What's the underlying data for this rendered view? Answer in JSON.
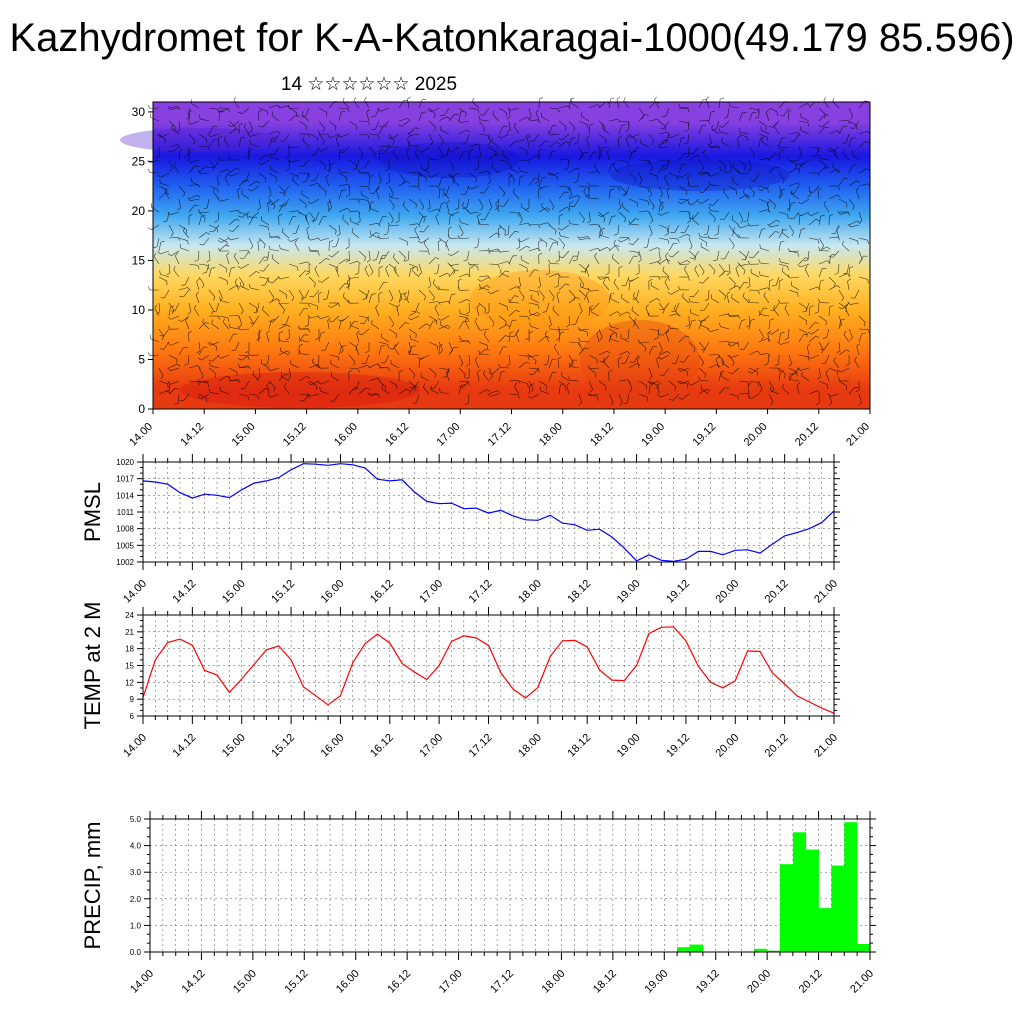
{
  "header": {
    "title": "Kazhydromet for K-A-Katonkaragai-1000(49.179 85.596)",
    "subtitle": "14 ☆☆☆☆☆☆ 2025"
  },
  "colors": {
    "pmsl_line": "#0000ff",
    "temp_line": "#ff0000",
    "precip_bar": "#00ff00",
    "axis": "#000000",
    "grid": "#000000",
    "wind_barb": "#000000"
  },
  "chart_data": [
    {
      "id": "vertical-section",
      "type": "heatmap",
      "title": "",
      "ylabel": "",
      "ylim": [
        0,
        31
      ],
      "y_ticks": [
        "0",
        "5",
        "10",
        "15",
        "20",
        "25",
        "30"
      ],
      "x_ticks": [
        "14.00",
        "14.12",
        "15.00",
        "15.12",
        "16.00",
        "16.12",
        "17.00",
        "17.12",
        "18.00",
        "18.12",
        "19.00",
        "19.12",
        "20.00",
        "20.12",
        "21.00"
      ],
      "color_bands": [
        {
          "from": 0,
          "to": 4,
          "color": "#e83a10"
        },
        {
          "from": 4,
          "to": 8,
          "color": "#ff7a10"
        },
        {
          "from": 8,
          "to": 12,
          "color": "#ffb020"
        },
        {
          "from": 12,
          "to": 15,
          "color": "#ffd860"
        },
        {
          "from": 15,
          "to": 18,
          "color": "#c8e8f0"
        },
        {
          "from": 18,
          "to": 21,
          "color": "#40a8f0"
        },
        {
          "from": 21,
          "to": 24,
          "color": "#2060f0"
        },
        {
          "from": 24,
          "to": 27,
          "color": "#1818e0"
        },
        {
          "from": 27,
          "to": 31,
          "color": "#8840e0"
        }
      ],
      "overlay": "wind barbs"
    },
    {
      "id": "pmsl",
      "type": "line",
      "ylabel": "PMSL",
      "ylim": [
        1002,
        1020
      ],
      "y_ticks": [
        "1002",
        "1005",
        "1008",
        "1011",
        "1014",
        "1017",
        "1020"
      ],
      "x_ticks": [
        "14.00",
        "14.12",
        "15.00",
        "15.12",
        "16.00",
        "16.12",
        "17.00",
        "17.12",
        "18.00",
        "18.12",
        "19.00",
        "19.12",
        "20.00",
        "20.12",
        "21.00"
      ],
      "series": [
        {
          "values": [
            1016.6,
            1016.4,
            1016.0,
            1014.5,
            1013.5,
            1014.2,
            1014.0,
            1013.6,
            1015.0,
            1016.2,
            1016.6,
            1017.2,
            1018.6,
            1019.7,
            1019.6,
            1019.4,
            1019.7,
            1019.5,
            1018.9,
            1016.9,
            1016.6,
            1016.8,
            1014.6,
            1012.9,
            1012.5,
            1012.6,
            1011.6,
            1011.7,
            1010.8,
            1011.3,
            1010.3,
            1009.6,
            1009.5,
            1010.4,
            1009.0,
            1008.7,
            1007.7,
            1007.9,
            1006.5,
            1004.5,
            1002.2,
            1003.3,
            1002.3,
            1002.1,
            1002.5,
            1003.9,
            1003.9,
            1003.3,
            1004.1,
            1004.2,
            1003.6,
            1005.2,
            1006.7,
            1007.3,
            1008.0,
            1009.1,
            1011.2
          ]
        }
      ]
    },
    {
      "id": "temp2m",
      "type": "line",
      "ylabel": "TEMP at 2 M",
      "ylim": [
        6,
        24
      ],
      "y_ticks": [
        "6",
        "9",
        "12",
        "15",
        "18",
        "21",
        "24"
      ],
      "x_ticks": [
        "14.00",
        "14.12",
        "15.00",
        "15.12",
        "16.00",
        "16.12",
        "17.00",
        "17.12",
        "18.00",
        "18.12",
        "19.00",
        "19.12",
        "20.00",
        "20.12",
        "21.00"
      ],
      "series": [
        {
          "values": [
            9.3,
            16.0,
            19.1,
            19.7,
            18.6,
            14.1,
            13.3,
            10.2,
            12.6,
            15.2,
            17.8,
            18.5,
            16.0,
            11.2,
            9.6,
            8.0,
            9.6,
            15.5,
            18.9,
            20.6,
            19.0,
            15.4,
            13.8,
            12.5,
            15.0,
            19.3,
            20.3,
            19.9,
            18.6,
            13.7,
            10.8,
            9.2,
            11.1,
            16.6,
            19.4,
            19.5,
            18.3,
            14.2,
            12.4,
            12.3,
            15.0,
            20.7,
            21.8,
            21.9,
            19.4,
            14.9,
            12.0,
            11.0,
            12.3,
            17.6,
            17.5,
            13.7,
            11.7,
            9.6,
            8.5,
            7.4,
            6.5
          ]
        }
      ]
    },
    {
      "id": "precip",
      "type": "bar",
      "ylabel": "PRECIP, mm",
      "ylim": [
        0,
        5
      ],
      "y_ticks": [
        "0.0",
        "1.0",
        "2.0",
        "3.0",
        "4.0",
        "5.0"
      ],
      "x_ticks": [
        "14.00",
        "14.12",
        "15.00",
        "15.12",
        "16.00",
        "16.12",
        "17.00",
        "17.12",
        "18.00",
        "18.12",
        "19.00",
        "19.12",
        "20.00",
        "20.12",
        "21.00"
      ],
      "values": [
        0,
        0,
        0,
        0,
        0,
        0,
        0,
        0,
        0,
        0,
        0,
        0,
        0,
        0,
        0,
        0,
        0,
        0,
        0,
        0,
        0,
        0,
        0,
        0,
        0,
        0.02,
        0,
        0,
        0,
        0,
        0,
        0,
        0,
        0,
        0,
        0,
        0,
        0,
        0,
        0,
        0,
        0.18,
        0.28,
        0,
        0,
        0,
        0,
        0.12,
        0.05,
        3.3,
        4.5,
        3.85,
        1.65,
        3.25,
        4.88,
        0.3
      ]
    }
  ]
}
